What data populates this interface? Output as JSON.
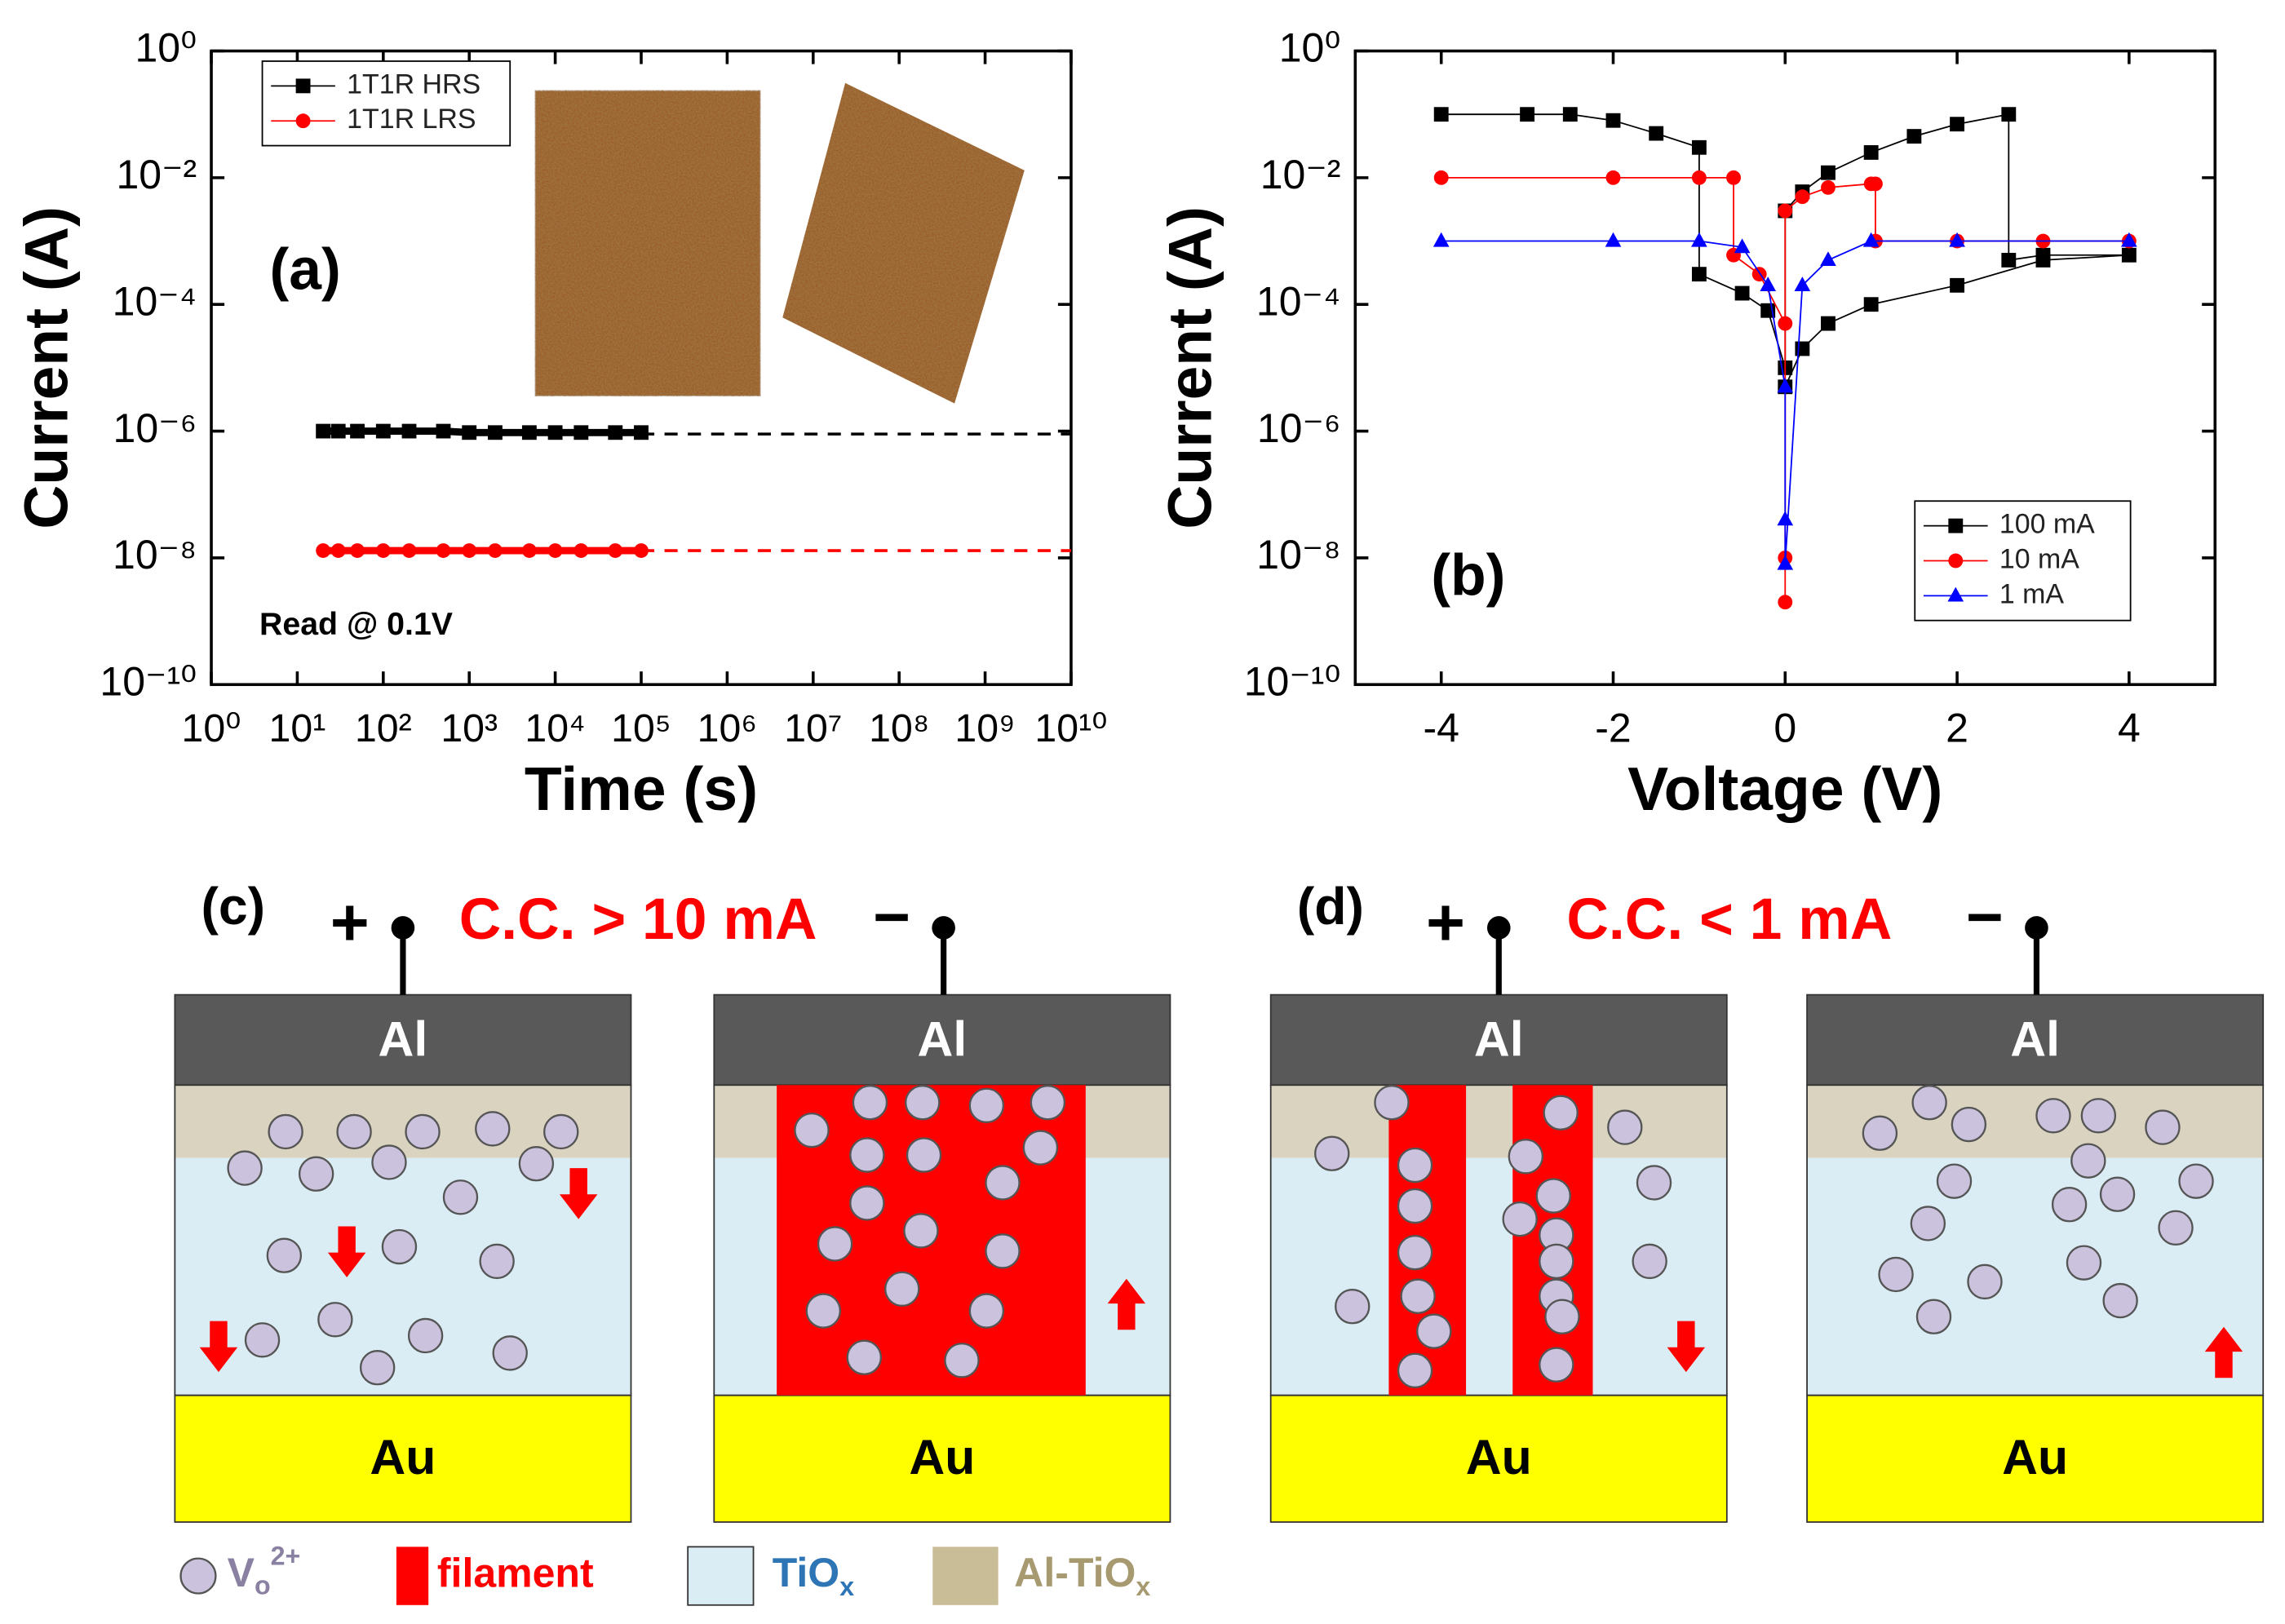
{
  "chart_data": [
    {
      "type": "line",
      "xscale": "log",
      "yscale": "log",
      "xlabel": "Time (s)",
      "ylabel": "Current (A)",
      "xlim": [
        1,
        10000000000
      ],
      "ylim": [
        1e-10,
        1
      ],
      "xticks": [
        {
          "value": 1,
          "label": "10⁰"
        },
        {
          "value": 10,
          "label": "10¹"
        },
        {
          "value": 100,
          "label": "10²"
        },
        {
          "value": 1000,
          "label": "10³"
        },
        {
          "value": 10000,
          "label": "10⁴"
        },
        {
          "value": 100000,
          "label": "10⁵"
        },
        {
          "value": 1000000,
          "label": "10⁶"
        },
        {
          "value": 10000000,
          "label": "10⁷"
        },
        {
          "value": 100000000,
          "label": "10⁸"
        },
        {
          "value": 1000000000,
          "label": "10⁹"
        },
        {
          "value": 10000000000,
          "label": "10¹⁰"
        }
      ],
      "yticks": [
        {
          "value": 1,
          "label": "10⁰"
        },
        {
          "value": 0.01,
          "label": "10⁻²"
        },
        {
          "value": 0.0001,
          "label": "10⁻⁴"
        },
        {
          "value": 1e-06,
          "label": "10⁻⁶"
        },
        {
          "value": 1e-08,
          "label": "10⁻⁸"
        },
        {
          "value": 1e-10,
          "label": "10⁻¹⁰"
        }
      ],
      "legend": "upper left",
      "annotations": [
        "(a)",
        "Read @ 0.1V"
      ],
      "series": [
        {
          "name": "1T1R HRS",
          "color": "#000000",
          "marker": "square",
          "x": [
            20,
            30,
            50,
            100,
            200,
            500,
            1000,
            2000,
            5000,
            10000,
            20000,
            50000,
            100000
          ],
          "values": [
            1e-06,
            1e-06,
            1e-06,
            1e-06,
            1e-06,
            1e-06,
            9.5e-07,
            9.5e-07,
            9.5e-07,
            9.5e-07,
            9.5e-07,
            9.5e-07,
            9.5e-07
          ]
        },
        {
          "name": "1T1R LRS",
          "color": "#ff0000",
          "marker": "circle",
          "x": [
            20,
            30,
            50,
            100,
            200,
            500,
            1000,
            2000,
            5000,
            10000,
            20000,
            50000,
            100000
          ],
          "values": [
            1.3e-08,
            1.3e-08,
            1.3e-08,
            1.3e-08,
            1.3e-08,
            1.3e-08,
            1.3e-08,
            1.3e-08,
            1.3e-08,
            1.3e-08,
            1.3e-08,
            1.3e-08,
            1.3e-08
          ]
        }
      ],
      "extrapolations": [
        {
          "color": "#000000",
          "x": [
            100000,
            10000000000
          ],
          "values": [
            9e-07,
            9e-07
          ]
        },
        {
          "color": "#ff0000",
          "x": [
            100000,
            10000000000
          ],
          "values": [
            1.3e-08,
            1.3e-08
          ]
        }
      ]
    },
    {
      "type": "line",
      "xscale": "linear",
      "yscale": "log",
      "xlabel": "Voltage (V)",
      "ylabel": "Current (A)",
      "xlim": [
        -5,
        5
      ],
      "ylim": [
        1e-10,
        1
      ],
      "xticks": [
        -4,
        -2,
        0,
        2,
        4
      ],
      "yticks": [
        {
          "value": 1,
          "label": "10⁰"
        },
        {
          "value": 0.01,
          "label": "10⁻²"
        },
        {
          "value": 0.0001,
          "label": "10⁻⁴"
        },
        {
          "value": 1e-06,
          "label": "10⁻⁶"
        },
        {
          "value": 1e-08,
          "label": "10⁻⁸"
        },
        {
          "value": 1e-10,
          "label": "10⁻¹⁰"
        }
      ],
      "legend": "lower right",
      "annotations": [
        "(b)"
      ],
      "series": [
        {
          "name": "100 mA",
          "color": "#000000",
          "marker": "square",
          "x": [
            -4,
            -3,
            -2.5,
            -2,
            -1.5,
            -1,
            -1,
            -0.5,
            -0.2,
            0,
            0,
            0.2,
            0.5,
            1,
            1.5,
            2,
            2.6,
            2.6,
            3,
            4,
            3,
            2,
            1,
            0.5,
            0.2,
            0
          ],
          "values": [
            0.1,
            0.1,
            0.1,
            0.08,
            0.05,
            0.03,
            0.0003,
            0.00015,
            8e-05,
            1e-05,
            0.003,
            0.006,
            0.012,
            0.025,
            0.045,
            0.07,
            0.1,
            0.0005,
            0.0006,
            0.0006,
            0.0005,
            0.0002,
            0.0001,
            5e-05,
            2e-05,
            5e-06
          ]
        },
        {
          "name": "10 mA",
          "color": "#ff0000",
          "marker": "circle",
          "x": [
            -4,
            -2,
            -1,
            -0.6,
            -0.6,
            -0.3,
            0,
            0,
            0,
            0,
            0.2,
            0.5,
            1,
            1.05,
            1.05,
            2,
            3,
            4
          ],
          "values": [
            0.01,
            0.01,
            0.01,
            0.01,
            0.0006,
            0.0003,
            5e-05,
            1e-08,
            2e-09,
            0.003,
            0.005,
            0.007,
            0.008,
            0.008,
            0.001,
            0.001,
            0.001,
            0.001
          ]
        },
        {
          "name": "1 mA",
          "color": "#0000ff",
          "marker": "triangle",
          "x": [
            -4,
            -2,
            -1,
            -0.5,
            -0.2,
            0,
            0,
            0,
            0.2,
            0.5,
            1,
            2,
            4
          ],
          "values": [
            0.001,
            0.001,
            0.001,
            0.0008,
            0.0002,
            5e-06,
            4e-08,
            8e-09,
            0.0002,
            0.0005,
            0.001,
            0.001,
            0.001
          ]
        }
      ]
    }
  ],
  "diagram": {
    "panel_labels": [
      "(c)",
      "(d)"
    ],
    "conditions": [
      "C.C. > 10 mA",
      "C.C. < 1 mA"
    ],
    "plus": "+",
    "minus": "−",
    "panels": [
      {
        "top": "Al",
        "bottom": "Au"
      },
      {
        "top": "Al",
        "bottom": "Au"
      },
      {
        "top": "Al",
        "bottom": "Au"
      },
      {
        "top": "Al",
        "bottom": "Au"
      }
    ],
    "legend": {
      "vacancy": {
        "text": "V",
        "sub": "o",
        "sup": "2+"
      },
      "filament": "filament",
      "tiox": {
        "text": "TiO",
        "sub": "x"
      },
      "altiox": {
        "text": "Al-TiO",
        "sub": "x"
      }
    }
  }
}
